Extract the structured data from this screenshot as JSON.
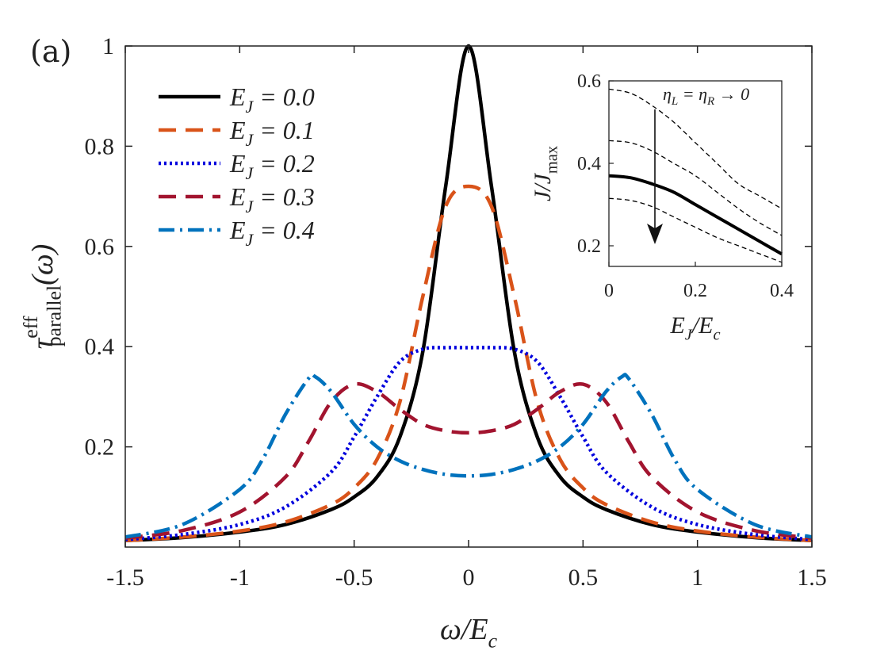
{
  "panel_label": "(a)",
  "chart_data": [
    {
      "type": "line",
      "xlabel": "ω/E_c",
      "ylabel": "τ^eff_parallel(ω)",
      "xlim": [
        -1.5,
        1.5
      ],
      "ylim": [
        0,
        1
      ],
      "xticks": [
        -1.5,
        -1,
        -0.5,
        0,
        0.5,
        1,
        1.5
      ],
      "xtick_labels": [
        "-1.5",
        "-1",
        "-0.5",
        "0",
        "0.5",
        "1",
        "1.5"
      ],
      "yticks": [
        0.2,
        0.4,
        0.6,
        0.8,
        1
      ],
      "ytick_labels": [
        "0.2",
        "0.4",
        "0.6",
        "0.8",
        "1"
      ],
      "legend_position": "top-left",
      "series": [
        {
          "name": "E_J = 0.0",
          "color": "#000000",
          "style": "solid",
          "x": [
            -1.5,
            -1.25,
            -1.0,
            -0.8,
            -0.6,
            -0.5,
            -0.4,
            -0.3,
            -0.2,
            -0.1,
            0,
            0.1,
            0.2,
            0.3,
            0.4,
            0.5,
            0.6,
            0.8,
            1.0,
            1.25,
            1.5
          ],
          "y": [
            0.013,
            0.019,
            0.03,
            0.045,
            0.075,
            0.1,
            0.14,
            0.22,
            0.39,
            0.72,
            1.0,
            0.72,
            0.39,
            0.22,
            0.14,
            0.1,
            0.075,
            0.045,
            0.03,
            0.019,
            0.013
          ]
        },
        {
          "name": "E_J = 0.1",
          "color": "#D95319",
          "style": "dash",
          "x": [
            -1.5,
            -1.25,
            -1.0,
            -0.8,
            -0.6,
            -0.5,
            -0.4,
            -0.3,
            -0.2,
            -0.1,
            0,
            0.1,
            0.2,
            0.3,
            0.4,
            0.5,
            0.6,
            0.8,
            1.0,
            1.25,
            1.5
          ],
          "y": [
            0.013,
            0.02,
            0.032,
            0.05,
            0.085,
            0.118,
            0.175,
            0.29,
            0.5,
            0.68,
            0.72,
            0.68,
            0.5,
            0.29,
            0.175,
            0.118,
            0.085,
            0.05,
            0.032,
            0.02,
            0.013
          ]
        },
        {
          "name": "E_J = 0.2",
          "color": "#0000DD",
          "style": "dot",
          "x": [
            -1.5,
            -1.25,
            -1.0,
            -0.8,
            -0.6,
            -0.5,
            -0.4,
            -0.3,
            -0.2,
            -0.1,
            0,
            0.1,
            0.2,
            0.3,
            0.4,
            0.5,
            0.6,
            0.8,
            1.0,
            1.25,
            1.5
          ],
          "y": [
            0.015,
            0.025,
            0.045,
            0.08,
            0.15,
            0.22,
            0.3,
            0.37,
            0.395,
            0.398,
            0.398,
            0.398,
            0.395,
            0.37,
            0.3,
            0.22,
            0.15,
            0.08,
            0.045,
            0.025,
            0.015
          ]
        },
        {
          "name": "E_J = 0.3",
          "color": "#A2142F",
          "style": "dash",
          "x": [
            -1.5,
            -1.25,
            -1.0,
            -0.8,
            -0.7,
            -0.6,
            -0.5,
            -0.4,
            -0.3,
            -0.2,
            -0.1,
            0,
            0.1,
            0.2,
            0.3,
            0.4,
            0.5,
            0.6,
            0.7,
            0.8,
            1.0,
            1.25,
            1.5
          ],
          "y": [
            0.018,
            0.033,
            0.07,
            0.14,
            0.21,
            0.29,
            0.325,
            0.31,
            0.275,
            0.245,
            0.232,
            0.228,
            0.232,
            0.245,
            0.275,
            0.31,
            0.325,
            0.29,
            0.21,
            0.14,
            0.07,
            0.033,
            0.018
          ]
        },
        {
          "name": "E_J = 0.4",
          "color": "#0072BD",
          "style": "dashdot",
          "x": [
            -1.5,
            -1.25,
            -1.0,
            -0.9,
            -0.8,
            -0.7,
            -0.67,
            -0.6,
            -0.5,
            -0.4,
            -0.3,
            -0.2,
            -0.1,
            0,
            0.1,
            0.2,
            0.3,
            0.4,
            0.5,
            0.6,
            0.67,
            0.7,
            0.8,
            0.9,
            1.0,
            1.25,
            1.5
          ],
          "y": [
            0.02,
            0.045,
            0.115,
            0.175,
            0.265,
            0.336,
            0.34,
            0.31,
            0.245,
            0.2,
            0.172,
            0.155,
            0.145,
            0.142,
            0.145,
            0.155,
            0.172,
            0.2,
            0.245,
            0.31,
            0.34,
            0.336,
            0.265,
            0.175,
            0.115,
            0.045,
            0.02
          ]
        }
      ]
    },
    {
      "type": "line",
      "xlabel": "E_J/E_c",
      "ylabel": "J/J_max",
      "xlim": [
        0,
        0.4
      ],
      "ylim": [
        0.15,
        0.6
      ],
      "xticks": [
        0,
        0.2,
        0.4
      ],
      "xtick_labels": [
        "0",
        "0.2",
        "0.4"
      ],
      "yticks": [
        0.2,
        0.4,
        0.6
      ],
      "ytick_labels": [
        "0.2",
        "0.4",
        "0.6"
      ],
      "annotation": "η_L = η_R → 0",
      "series": [
        {
          "color": "#000000",
          "style": "thin-dash",
          "x": [
            0,
            0.05,
            0.1,
            0.15,
            0.2,
            0.25,
            0.3,
            0.35,
            0.4
          ],
          "y": [
            0.58,
            0.57,
            0.54,
            0.5,
            0.45,
            0.4,
            0.35,
            0.32,
            0.29
          ]
        },
        {
          "color": "#000000",
          "style": "thin-dash",
          "x": [
            0,
            0.05,
            0.1,
            0.15,
            0.2,
            0.25,
            0.3,
            0.35,
            0.4
          ],
          "y": [
            0.455,
            0.45,
            0.43,
            0.4,
            0.37,
            0.33,
            0.29,
            0.255,
            0.225
          ]
        },
        {
          "color": "#000000",
          "style": "solid-thick",
          "x": [
            0,
            0.05,
            0.1,
            0.15,
            0.2,
            0.25,
            0.3,
            0.35,
            0.4
          ],
          "y": [
            0.37,
            0.365,
            0.35,
            0.33,
            0.3,
            0.27,
            0.24,
            0.21,
            0.18
          ]
        },
        {
          "color": "#000000",
          "style": "thin-dash",
          "x": [
            0,
            0.05,
            0.1,
            0.15,
            0.2,
            0.25,
            0.3,
            0.35,
            0.4
          ],
          "y": [
            0.315,
            0.31,
            0.295,
            0.27,
            0.245,
            0.22,
            0.2,
            0.18,
            0.16
          ]
        }
      ]
    }
  ]
}
